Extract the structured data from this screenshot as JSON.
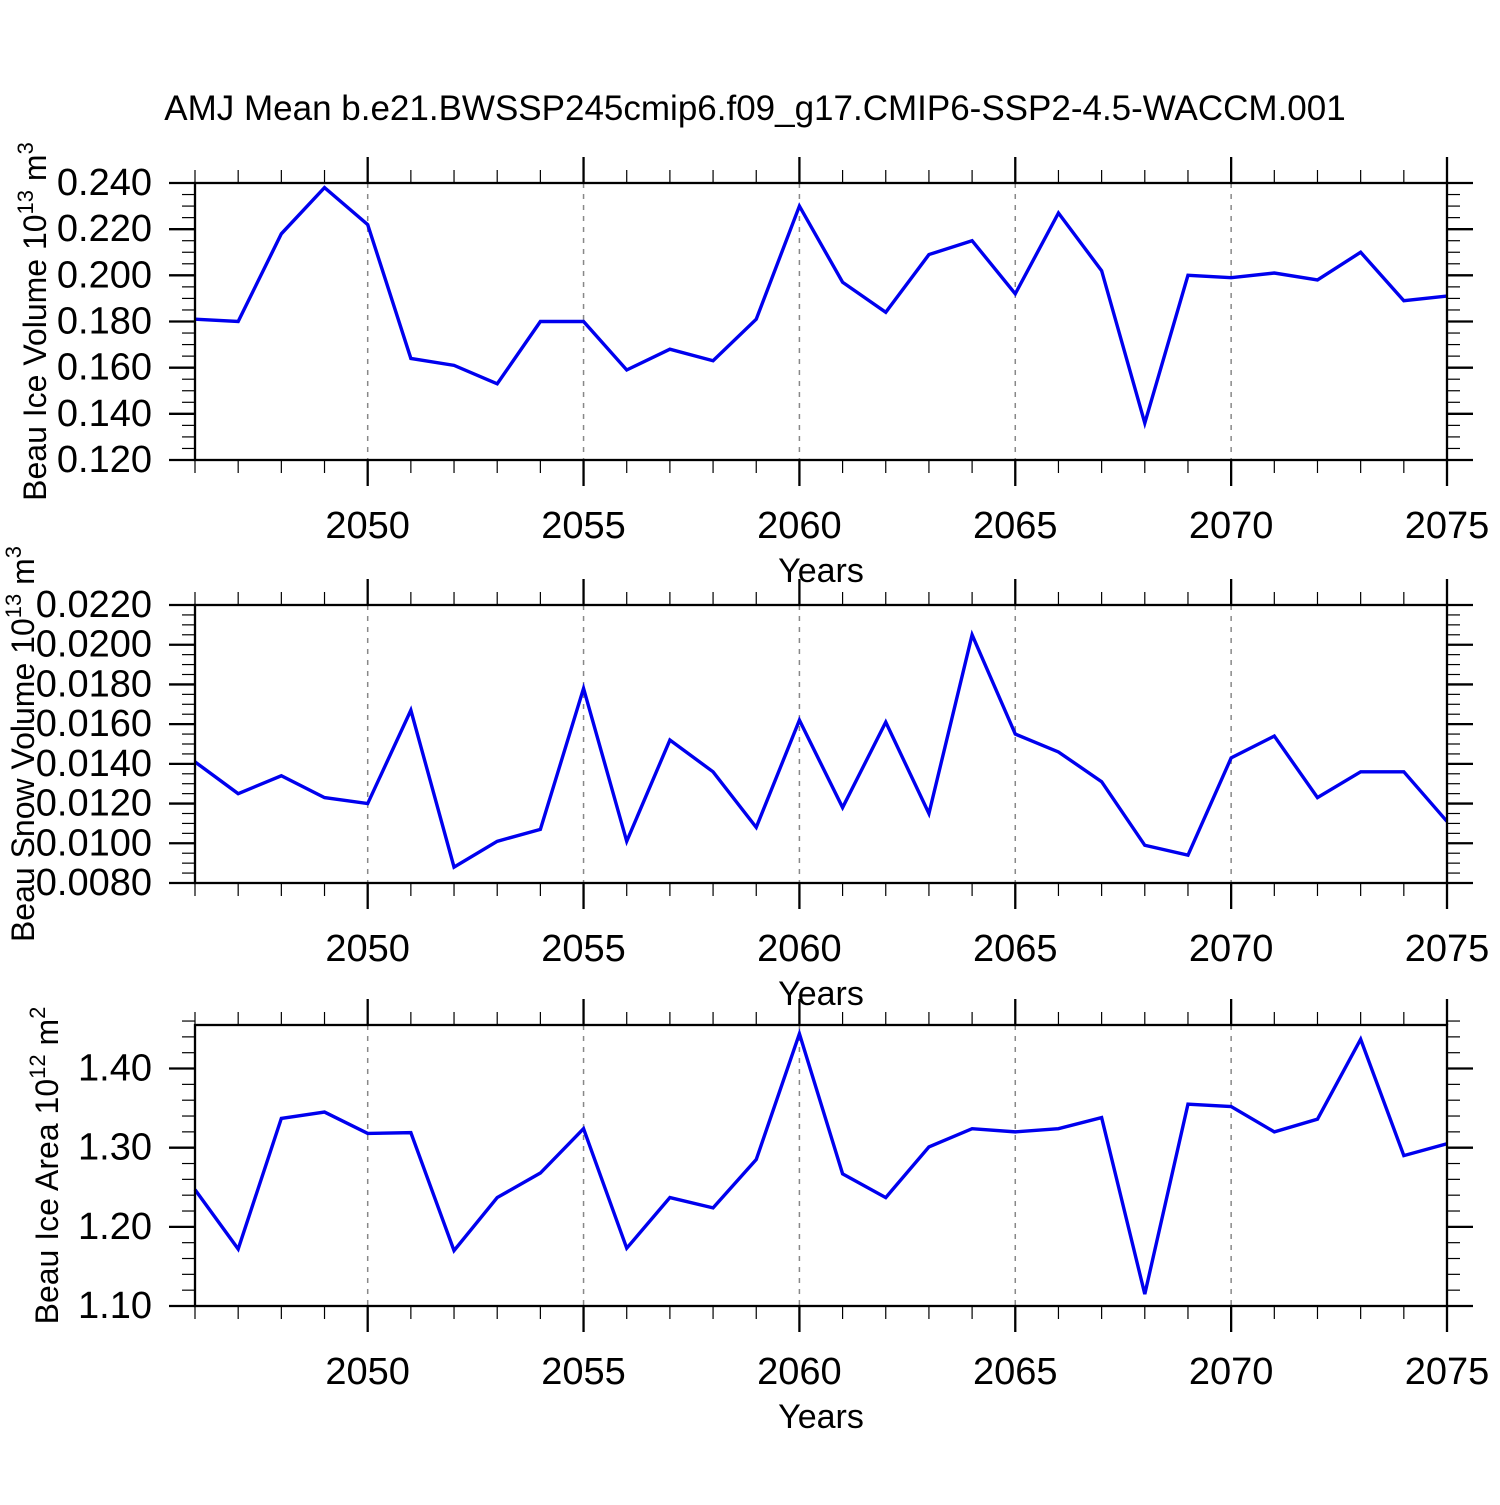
{
  "title": "AMJ Mean b.e21.BWSSP245cmip6.f09_g17.CMIP6-SSP2-4.5-WACCM.001",
  "colors": {
    "line": "#0000EE",
    "grid": "#888888",
    "frame": "#000000",
    "background": "#FFFFFF"
  },
  "chart_data": [
    {
      "type": "line",
      "ylabel": "Beau Ice Volume 10^13 m^3",
      "ylabel_parts": [
        {
          "t": "Beau Ice Volume 10"
        },
        {
          "t": "13",
          "sup": true
        },
        {
          "t": " m"
        },
        {
          "t": "3",
          "sup": true
        }
      ],
      "xlabel": "Years",
      "x_range": [
        2046,
        2075
      ],
      "x": [
        2046,
        2047,
        2048,
        2049,
        2050,
        2051,
        2052,
        2053,
        2054,
        2055,
        2056,
        2057,
        2058,
        2059,
        2060,
        2061,
        2062,
        2063,
        2064,
        2065,
        2066,
        2067,
        2068,
        2069,
        2070,
        2071,
        2072,
        2073,
        2074,
        2075
      ],
      "values": [
        0.181,
        0.18,
        0.218,
        0.238,
        0.222,
        0.164,
        0.161,
        0.153,
        0.18,
        0.18,
        0.159,
        0.168,
        0.163,
        0.181,
        0.23,
        0.197,
        0.184,
        0.209,
        0.215,
        0.192,
        0.227,
        0.202,
        0.136,
        0.2,
        0.199,
        0.201,
        0.198,
        0.21,
        0.189,
        0.191
      ],
      "ylim": [
        0.12,
        0.24
      ],
      "yticks": [
        0.12,
        0.14,
        0.16,
        0.18,
        0.2,
        0.22,
        0.24
      ],
      "ytick_labels": [
        "0.120",
        "0.140",
        "0.160",
        "0.180",
        "0.200",
        "0.220",
        "0.240"
      ],
      "y_minor_step": 0.005,
      "xticks": [
        2050,
        2055,
        2060,
        2065,
        2070,
        2075
      ],
      "xtick_labels": [
        "2050",
        "2055",
        "2060",
        "2065",
        "2070",
        "2075"
      ],
      "grid_years": [
        2050,
        2055,
        2060,
        2065,
        2070
      ],
      "grid_on": true,
      "legend": "none"
    },
    {
      "type": "line",
      "ylabel": "Beau Snow Volume 10^13 m^3",
      "ylabel_parts": [
        {
          "t": "Beau Snow Volume 10"
        },
        {
          "t": "13",
          "sup": true
        },
        {
          "t": " m"
        },
        {
          "t": "3",
          "sup": true
        }
      ],
      "xlabel": "Years",
      "x_range": [
        2046,
        2075
      ],
      "x": [
        2046,
        2047,
        2048,
        2049,
        2050,
        2051,
        2052,
        2053,
        2054,
        2055,
        2056,
        2057,
        2058,
        2059,
        2060,
        2061,
        2062,
        2063,
        2064,
        2065,
        2066,
        2067,
        2068,
        2069,
        2070,
        2071,
        2072,
        2073,
        2074,
        2075
      ],
      "values": [
        0.0141,
        0.0125,
        0.0134,
        0.0123,
        0.012,
        0.0167,
        0.0088,
        0.0101,
        0.0107,
        0.0178,
        0.0101,
        0.0152,
        0.0136,
        0.0108,
        0.0162,
        0.0118,
        0.0161,
        0.0115,
        0.0205,
        0.0155,
        0.0146,
        0.0131,
        0.0099,
        0.0094,
        0.0143,
        0.0154,
        0.0123,
        0.0136,
        0.0136,
        0.0111
      ],
      "ylim": [
        0.008,
        0.022
      ],
      "yticks": [
        0.008,
        0.01,
        0.012,
        0.014,
        0.016,
        0.018,
        0.02,
        0.022
      ],
      "ytick_labels": [
        "0.0080",
        "0.0100",
        "0.0120",
        "0.0140",
        "0.0160",
        "0.0180",
        "0.0200",
        "0.0220"
      ],
      "y_minor_step": 0.0005,
      "xticks": [
        2050,
        2055,
        2060,
        2065,
        2070,
        2075
      ],
      "xtick_labels": [
        "2050",
        "2055",
        "2060",
        "2065",
        "2070",
        "2075"
      ],
      "grid_years": [
        2050,
        2055,
        2060,
        2065,
        2070
      ],
      "grid_on": true,
      "legend": "none"
    },
    {
      "type": "line",
      "ylabel": "Beau Ice Area 10^12 m^2",
      "ylabel_parts": [
        {
          "t": "Beau Ice Area 10"
        },
        {
          "t": "12",
          "sup": true
        },
        {
          "t": " m"
        },
        {
          "t": "2",
          "sup": true
        }
      ],
      "xlabel": "Years",
      "x_range": [
        2046,
        2075
      ],
      "x": [
        2046,
        2047,
        2048,
        2049,
        2050,
        2051,
        2052,
        2053,
        2054,
        2055,
        2056,
        2057,
        2058,
        2059,
        2060,
        2061,
        2062,
        2063,
        2064,
        2065,
        2066,
        2067,
        2068,
        2069,
        2070,
        2071,
        2072,
        2073,
        2074,
        2075
      ],
      "values": [
        1.247,
        1.172,
        1.337,
        1.345,
        1.318,
        1.319,
        1.17,
        1.237,
        1.268,
        1.324,
        1.173,
        1.237,
        1.224,
        1.285,
        1.444,
        1.267,
        1.237,
        1.301,
        1.324,
        1.32,
        1.324,
        1.338,
        1.115,
        1.355,
        1.352,
        1.32,
        1.336,
        1.437,
        1.29,
        1.305
      ],
      "ylim": [
        1.1,
        1.455
      ],
      "yticks": [
        1.1,
        1.2,
        1.3,
        1.4
      ],
      "ytick_labels": [
        "1.10",
        "1.20",
        "1.30",
        "1.40"
      ],
      "y_minor_step": 0.02,
      "xticks": [
        2050,
        2055,
        2060,
        2065,
        2070,
        2075
      ],
      "xtick_labels": [
        "2050",
        "2055",
        "2060",
        "2065",
        "2070",
        "2075"
      ],
      "grid_years": [
        2050,
        2055,
        2060,
        2065,
        2070
      ],
      "grid_on": true,
      "legend": "none"
    }
  ]
}
